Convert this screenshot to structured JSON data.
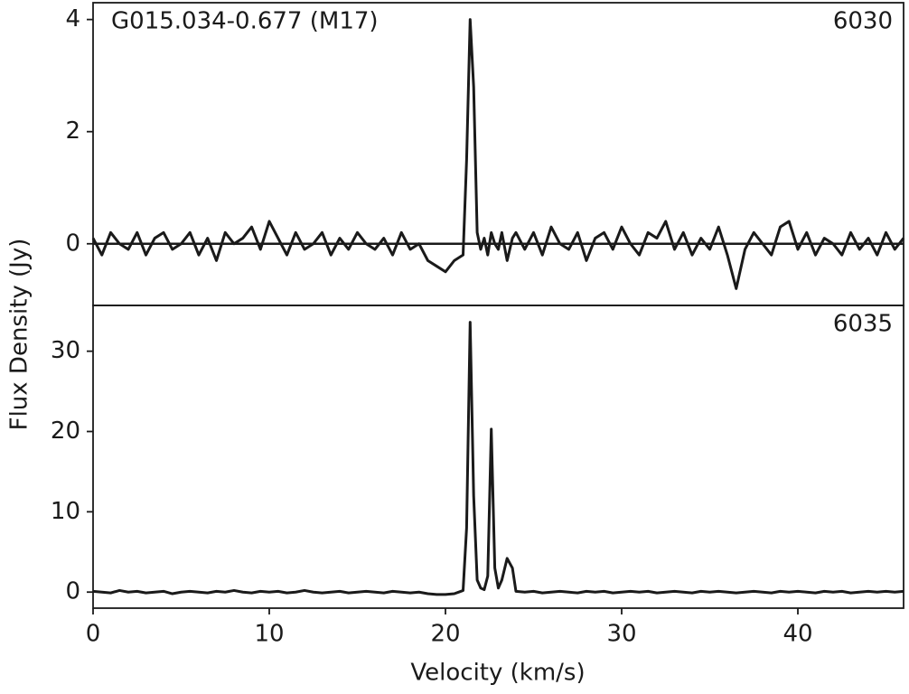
{
  "chart_data": [
    {
      "type": "line",
      "annotation": "G015.034-0.677 (M17)",
      "label": "6030",
      "ylabel": "Flux Density (Jy)",
      "x": [
        0,
        0.5,
        1,
        1.5,
        2,
        2.5,
        3,
        3.5,
        4,
        4.5,
        5,
        5.5,
        6,
        6.5,
        7,
        7.5,
        8,
        8.5,
        9,
        9.5,
        10,
        10.5,
        11,
        11.5,
        12,
        12.5,
        13,
        13.5,
        14,
        14.5,
        15,
        15.5,
        16,
        16.5,
        17,
        17.5,
        18,
        18.5,
        19,
        19.5,
        20,
        20.5,
        21,
        21.2,
        21.4,
        21.6,
        21.8,
        22,
        22.2,
        22.4,
        22.6,
        22.8,
        23,
        23.2,
        23.5,
        23.8,
        24,
        24.5,
        25,
        25.5,
        26,
        26.5,
        27,
        27.5,
        28,
        28.5,
        29,
        29.5,
        30,
        30.5,
        31,
        31.5,
        32,
        32.5,
        33,
        33.5,
        34,
        34.5,
        35,
        35.5,
        36,
        36.5,
        37,
        37.5,
        38,
        38.5,
        39,
        39.5,
        40,
        40.5,
        41,
        41.5,
        42,
        42.5,
        43,
        43.5,
        44,
        44.5,
        45,
        45.5,
        46
      ],
      "values": [
        0.1,
        -0.2,
        0.2,
        0.0,
        -0.1,
        0.2,
        -0.2,
        0.1,
        0.2,
        -0.1,
        0.0,
        0.2,
        -0.2,
        0.1,
        -0.3,
        0.2,
        0.0,
        0.1,
        0.3,
        -0.1,
        0.4,
        0.1,
        -0.2,
        0.2,
        -0.1,
        0.0,
        0.2,
        -0.2,
        0.1,
        -0.1,
        0.2,
        0.0,
        -0.1,
        0.1,
        -0.2,
        0.2,
        -0.1,
        0.0,
        -0.3,
        -0.4,
        -0.5,
        -0.3,
        -0.2,
        1.5,
        4.0,
        2.8,
        0.2,
        -0.1,
        0.1,
        -0.2,
        0.2,
        0.0,
        -0.1,
        0.2,
        -0.3,
        0.1,
        0.2,
        -0.1,
        0.2,
        -0.2,
        0.3,
        0.0,
        -0.1,
        0.2,
        -0.3,
        0.1,
        0.2,
        -0.1,
        0.3,
        0.0,
        -0.2,
        0.2,
        0.1,
        0.4,
        -0.1,
        0.2,
        -0.2,
        0.1,
        -0.1,
        0.3,
        -0.2,
        -0.8,
        -0.1,
        0.2,
        0.0,
        -0.2,
        0.3,
        0.4,
        -0.1,
        0.2,
        -0.2,
        0.1,
        0.0,
        -0.2,
        0.2,
        -0.1,
        0.1,
        -0.2,
        0.2,
        -0.1,
        0.1
      ],
      "color": "#1a1a1a",
      "xlim": [
        0,
        46
      ],
      "ylim": [
        -1.1,
        4.3
      ],
      "yticks": [
        0,
        2,
        4
      ],
      "baseline": 0
    },
    {
      "type": "line",
      "label": "6035",
      "xlabel": "Velocity (km/s)",
      "x": [
        0,
        0.5,
        1,
        1.5,
        2,
        2.5,
        3,
        3.5,
        4,
        4.5,
        5,
        5.5,
        6,
        6.5,
        7,
        7.5,
        8,
        8.5,
        9,
        9.5,
        10,
        10.5,
        11,
        11.5,
        12,
        12.5,
        13,
        13.5,
        14,
        14.5,
        15,
        15.5,
        16,
        16.5,
        17,
        17.5,
        18,
        18.5,
        19,
        19.5,
        20,
        20.5,
        21,
        21.2,
        21.4,
        21.6,
        21.8,
        22,
        22.2,
        22.4,
        22.6,
        22.8,
        23,
        23.2,
        23.5,
        23.8,
        24,
        24.5,
        25,
        25.5,
        26,
        26.5,
        27,
        27.5,
        28,
        28.5,
        29,
        29.5,
        30,
        30.5,
        31,
        31.5,
        32,
        32.5,
        33,
        33.5,
        34,
        34.5,
        35,
        35.5,
        36,
        36.5,
        37,
        37.5,
        38,
        38.5,
        39,
        39.5,
        40,
        40.5,
        41,
        41.5,
        42,
        42.5,
        43,
        43.5,
        44,
        44.5,
        45,
        45.5,
        46
      ],
      "values": [
        0.1,
        0.0,
        -0.1,
        0.2,
        0.0,
        0.1,
        -0.1,
        0.0,
        0.1,
        -0.2,
        0.0,
        0.1,
        0.0,
        -0.1,
        0.1,
        0.0,
        0.2,
        0.0,
        -0.1,
        0.1,
        0.0,
        0.1,
        -0.1,
        0.0,
        0.2,
        0.0,
        -0.1,
        0.0,
        0.1,
        -0.1,
        0.0,
        0.1,
        0.0,
        -0.1,
        0.1,
        0.0,
        -0.1,
        0.0,
        -0.2,
        -0.3,
        -0.3,
        -0.2,
        0.2,
        8.0,
        33.6,
        12.0,
        1.5,
        0.5,
        0.3,
        2.0,
        20.3,
        3.0,
        0.5,
        1.5,
        4.2,
        3.0,
        0.1,
        0.0,
        0.1,
        -0.1,
        0.0,
        0.1,
        0.0,
        -0.1,
        0.1,
        0.0,
        0.1,
        -0.1,
        0.0,
        0.1,
        0.0,
        0.1,
        -0.1,
        0.0,
        0.1,
        0.0,
        -0.1,
        0.1,
        0.0,
        0.1,
        0.0,
        -0.1,
        0.0,
        0.1,
        0.0,
        -0.1,
        0.1,
        0.0,
        0.1,
        0.0,
        -0.1,
        0.1,
        0.0,
        0.1,
        -0.1,
        0.0,
        0.1,
        0.0,
        0.1,
        0.0,
        0.1
      ],
      "color": "#1a1a1a",
      "xlim": [
        0,
        46
      ],
      "ylim": [
        -2,
        35.7
      ],
      "xticks": [
        0,
        10,
        20,
        30,
        40
      ],
      "yticks": [
        0,
        10,
        20,
        30
      ]
    }
  ]
}
